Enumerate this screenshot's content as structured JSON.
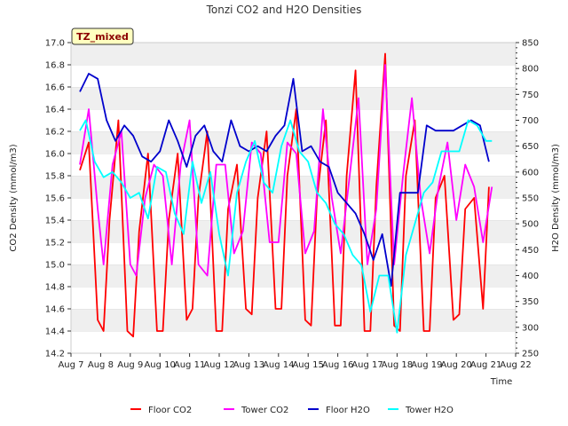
{
  "chart_data": {
    "type": "line",
    "title": "Tonzi CO2 and H2O Densities",
    "badge": "TZ_mixed",
    "xlabel": "Time",
    "ylabel_left": "CO2 Density (mmol/m3)",
    "ylabel_right": "H2O Density (mmol/m3)",
    "x_ticks": [
      "Aug 7",
      "Aug 8",
      "Aug 9",
      "Aug 10",
      "Aug 11",
      "Aug 12",
      "Aug 13",
      "Aug 14",
      "Aug 15",
      "Aug 16",
      "Aug 17",
      "Aug 18",
      "Aug 19",
      "Aug 20",
      "Aug 21",
      "Aug 22"
    ],
    "x_range_days": [
      7,
      22
    ],
    "ylim_left": [
      14.2,
      17.0
    ],
    "yticks_left": [
      "14.2",
      "14.4",
      "14.6",
      "14.8",
      "15.0",
      "15.2",
      "15.4",
      "15.6",
      "15.8",
      "16.0",
      "16.2",
      "16.4",
      "16.6",
      "16.8",
      "17.0"
    ],
    "ylim_right": [
      250,
      850
    ],
    "yticks_right": [
      "250",
      "300",
      "350",
      "400",
      "450",
      "500",
      "550",
      "600",
      "650",
      "700",
      "750",
      "800",
      "850"
    ],
    "grid": "horizontal bands",
    "legend_position": "bottom",
    "series": [
      {
        "name": "Floor CO2",
        "axis": "left",
        "color": "#ff0000",
        "x": [
          7.3,
          7.6,
          7.9,
          8.1,
          8.3,
          8.6,
          8.9,
          9.1,
          9.3,
          9.6,
          9.9,
          10.1,
          10.3,
          10.6,
          10.9,
          11.1,
          11.3,
          11.6,
          11.9,
          12.1,
          12.3,
          12.6,
          12.9,
          13.1,
          13.3,
          13.6,
          13.9,
          14.1,
          14.3,
          14.6,
          14.9,
          15.1,
          15.3,
          15.6,
          15.9,
          16.1,
          16.3,
          16.6,
          16.9,
          17.1,
          17.3,
          17.6,
          17.9,
          18.1,
          18.3,
          18.6,
          18.9,
          19.1,
          19.3,
          19.6,
          19.9,
          20.1,
          20.3,
          20.6,
          20.9,
          21.1
        ],
        "values": [
          15.85,
          16.1,
          14.5,
          14.4,
          15.4,
          16.3,
          14.4,
          14.35,
          15.3,
          16.0,
          14.4,
          14.4,
          15.4,
          16.0,
          14.5,
          14.6,
          15.6,
          16.2,
          14.4,
          14.4,
          15.5,
          15.9,
          14.6,
          14.55,
          15.6,
          16.2,
          14.6,
          14.6,
          15.8,
          16.4,
          14.5,
          14.45,
          15.6,
          16.3,
          14.45,
          14.45,
          15.8,
          16.75,
          14.4,
          14.4,
          15.7,
          16.9,
          14.45,
          14.4,
          15.8,
          16.3,
          14.4,
          14.4,
          15.6,
          15.8,
          14.5,
          14.55,
          15.5,
          15.6,
          14.6,
          15.7
        ]
      },
      {
        "name": "Tower CO2",
        "axis": "left",
        "color": "#ff00ff",
        "x": [
          7.3,
          7.6,
          7.9,
          8.1,
          8.4,
          8.7,
          9.0,
          9.2,
          9.5,
          9.8,
          10.1,
          10.4,
          10.7,
          11.0,
          11.3,
          11.6,
          11.9,
          12.2,
          12.5,
          12.8,
          13.1,
          13.4,
          13.7,
          14.0,
          14.3,
          14.6,
          14.9,
          15.2,
          15.5,
          15.8,
          16.1,
          16.4,
          16.7,
          17.0,
          17.3,
          17.6,
          17.9,
          18.2,
          18.5,
          18.8,
          19.1,
          19.4,
          19.7,
          20.0,
          20.3,
          20.6,
          20.9,
          21.2
        ],
        "values": [
          15.9,
          16.4,
          15.5,
          15.0,
          15.9,
          16.2,
          15.0,
          14.9,
          15.6,
          15.9,
          15.8,
          15.0,
          15.9,
          16.3,
          15.0,
          14.9,
          15.9,
          15.9,
          15.1,
          15.3,
          16.1,
          16.0,
          15.2,
          15.2,
          16.1,
          16.0,
          15.1,
          15.3,
          16.4,
          15.6,
          15.1,
          15.8,
          16.5,
          15.0,
          15.5,
          16.8,
          15.0,
          15.8,
          16.5,
          15.6,
          15.1,
          15.7,
          16.1,
          15.4,
          15.9,
          15.7,
          15.2,
          15.7
        ]
      },
      {
        "name": "Floor H2O",
        "axis": "right",
        "color": "#0000cc",
        "x": [
          7.3,
          7.6,
          7.9,
          8.2,
          8.5,
          8.8,
          9.1,
          9.4,
          9.7,
          10.0,
          10.3,
          10.6,
          10.9,
          11.2,
          11.5,
          11.8,
          12.1,
          12.4,
          12.7,
          13.0,
          13.3,
          13.6,
          13.9,
          14.2,
          14.5,
          14.8,
          15.1,
          15.4,
          15.7,
          16.0,
          16.3,
          16.6,
          16.9,
          17.2,
          17.5,
          17.8,
          18.1,
          18.4,
          18.7,
          19.0,
          19.3,
          19.6,
          19.9,
          20.2,
          20.5,
          20.8,
          21.1
        ],
        "values": [
          755,
          790,
          780,
          700,
          660,
          690,
          670,
          630,
          620,
          640,
          700,
          660,
          610,
          670,
          690,
          640,
          620,
          700,
          650,
          640,
          650,
          640,
          670,
          690,
          780,
          640,
          650,
          620,
          610,
          560,
          540,
          520,
          480,
          430,
          480,
          380,
          560,
          560,
          560,
          690,
          680,
          680,
          680,
          690,
          700,
          690,
          620
        ]
      },
      {
        "name": "Tower H2O",
        "axis": "right",
        "color": "#00ffff",
        "x": [
          7.3,
          7.5,
          7.8,
          8.1,
          8.4,
          8.7,
          9.0,
          9.3,
          9.6,
          9.9,
          10.2,
          10.5,
          10.8,
          11.1,
          11.4,
          11.7,
          12.0,
          12.3,
          12.6,
          12.9,
          13.2,
          13.5,
          13.8,
          14.1,
          14.4,
          14.7,
          15.0,
          15.3,
          15.6,
          15.9,
          16.2,
          16.5,
          16.8,
          17.1,
          17.4,
          17.7,
          18.0,
          18.3,
          18.6,
          18.9,
          19.2,
          19.5,
          19.8,
          20.1,
          20.4,
          20.7,
          21.0,
          21.2
        ],
        "values": [
          680,
          700,
          620,
          590,
          600,
          580,
          550,
          560,
          510,
          610,
          600,
          520,
          480,
          620,
          540,
          600,
          480,
          400,
          560,
          620,
          660,
          580,
          560,
          650,
          700,
          640,
          620,
          560,
          540,
          500,
          480,
          440,
          420,
          330,
          400,
          400,
          290,
          440,
          500,
          560,
          580,
          640,
          640,
          640,
          700,
          690,
          660,
          660
        ]
      }
    ]
  }
}
